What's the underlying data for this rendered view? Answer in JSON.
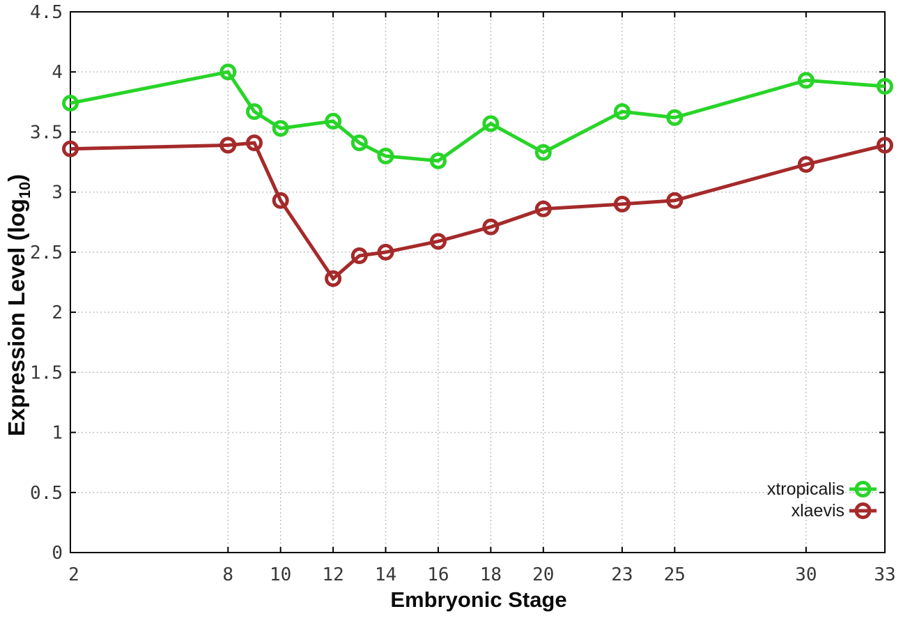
{
  "chart_data": {
    "type": "line",
    "title": "",
    "xlabel": "Embryonic Stage",
    "ylabel": "Expression Level (log10)",
    "ylabel_parts": {
      "prefix": "Expression Level (log",
      "sub": "10",
      "suffix": ")"
    },
    "x": [
      2,
      8,
      9,
      10,
      12,
      13,
      14,
      16,
      18,
      20,
      23,
      25,
      30,
      33
    ],
    "xlim": [
      2,
      33
    ],
    "ylim": [
      0,
      4.5
    ],
    "xticks": [
      2,
      8,
      10,
      12,
      14,
      16,
      18,
      20,
      23,
      25,
      30,
      33
    ],
    "xtick_labels": [
      "2",
      "8",
      "10",
      "12",
      "14",
      "16",
      "18",
      "20",
      "23",
      "25",
      "30",
      "33"
    ],
    "yticks": [
      0,
      0.5,
      1,
      1.5,
      2,
      2.5,
      3,
      3.5,
      4,
      4.5
    ],
    "ytick_labels": [
      "0",
      "0.5",
      "1",
      "1.5",
      "2",
      "2.5",
      "3",
      "3.5",
      "4",
      "4.5"
    ],
    "grid": true,
    "grid_style": "dotted",
    "legend_position": "inside-bottom-right",
    "marker": "open-circle",
    "series": [
      {
        "name": "xtropicalis",
        "color": "#28d428",
        "values": [
          3.74,
          4.0,
          3.67,
          3.53,
          3.59,
          3.41,
          3.3,
          3.26,
          3.57,
          3.33,
          3.67,
          3.62,
          3.93,
          3.88
        ]
      },
      {
        "name": "xlaevis",
        "color": "#a52a2a",
        "values": [
          3.36,
          3.39,
          3.41,
          2.93,
          2.28,
          2.47,
          2.5,
          2.59,
          2.71,
          2.86,
          2.9,
          2.93,
          3.23,
          3.39
        ]
      }
    ],
    "colors": {
      "border": "#000000",
      "grid": "#b3b3b3",
      "tick_label": "#383838",
      "background": "#ffffff"
    }
  }
}
